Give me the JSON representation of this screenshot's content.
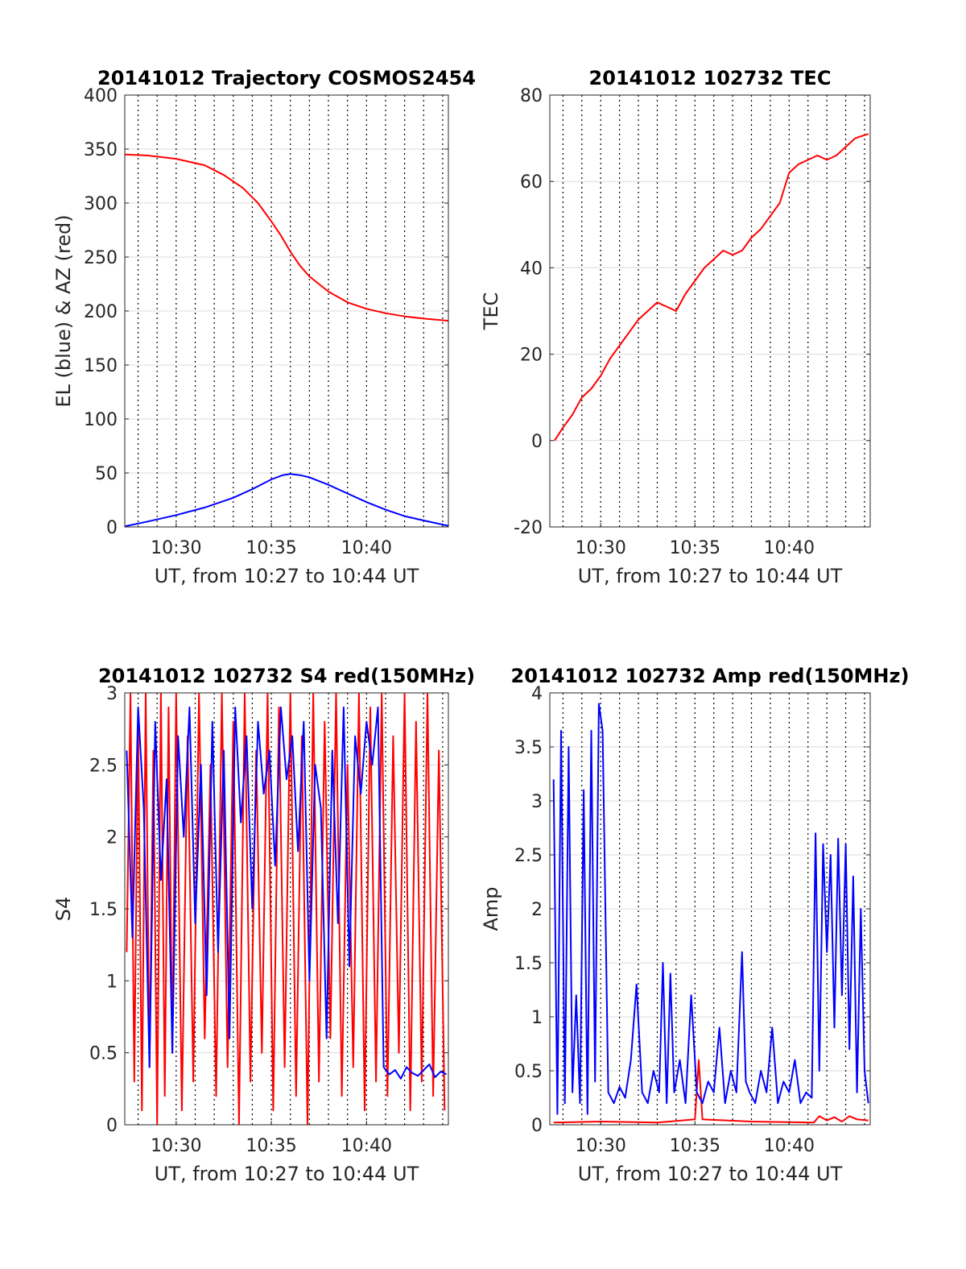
{
  "chart_data": [
    {
      "type": "line",
      "title": "20141012 Trajectory COSMOS2454",
      "xlabel": "UT, from 10:27 to 10:44 UT",
      "ylabel": "EL (blue) & AZ (red)",
      "xlim_minutes": [
        627.3,
        644.3
      ],
      "ylim": [
        0,
        400
      ],
      "grid": true,
      "xticks": [
        {
          "value": 630,
          "label": "10:30"
        },
        {
          "value": 635,
          "label": "10:35"
        },
        {
          "value": 640,
          "label": "10:40"
        }
      ],
      "yticks": [
        {
          "value": 0,
          "label": "0"
        },
        {
          "value": 50,
          "label": "50"
        },
        {
          "value": 100,
          "label": "100"
        },
        {
          "value": 150,
          "label": "150"
        },
        {
          "value": 200,
          "label": "200"
        },
        {
          "value": 250,
          "label": "250"
        },
        {
          "value": 300,
          "label": "300"
        },
        {
          "value": 350,
          "label": "350"
        },
        {
          "value": 400,
          "label": "400"
        }
      ],
      "series": [
        {
          "color": "#ff0000",
          "x": [
            627.3,
            628.5,
            630,
            631.5,
            632.5,
            633.5,
            634.3,
            635,
            635.5,
            636,
            636.5,
            637,
            638,
            639,
            640,
            641,
            642,
            643,
            644.3
          ],
          "y": [
            345,
            344,
            341,
            335,
            326,
            314,
            300,
            283,
            270,
            255,
            242,
            232,
            218,
            208,
            202,
            198,
            195,
            193,
            191
          ]
        },
        {
          "color": "#0000ff",
          "x": [
            627.3,
            628.5,
            630,
            631.5,
            633,
            634,
            635,
            635.6,
            636,
            636.5,
            637,
            638,
            639,
            640,
            641,
            642,
            643,
            644.3
          ],
          "y": [
            0.5,
            5,
            11,
            18,
            27,
            35,
            44,
            48,
            49,
            48,
            46,
            39,
            31,
            23,
            16,
            10,
            6,
            1
          ]
        }
      ]
    },
    {
      "type": "line",
      "title": "20141012 102732 TEC",
      "xlabel": "UT, from 10:27 to 10:44 UT",
      "ylabel": "TEC",
      "xlim_minutes": [
        627.3,
        644.3
      ],
      "ylim": [
        -20,
        80
      ],
      "grid": true,
      "xticks": [
        {
          "value": 630,
          "label": "10:30"
        },
        {
          "value": 635,
          "label": "10:35"
        },
        {
          "value": 640,
          "label": "10:40"
        }
      ],
      "yticks": [
        {
          "value": -20,
          "label": "-20"
        },
        {
          "value": 0,
          "label": "0"
        },
        {
          "value": 20,
          "label": "20"
        },
        {
          "value": 40,
          "label": "40"
        },
        {
          "value": 60,
          "label": "60"
        },
        {
          "value": 80,
          "label": "80"
        }
      ],
      "series": [
        {
          "color": "#ff0000",
          "x": [
            627.55,
            628,
            628.5,
            629,
            629.5,
            630,
            630.5,
            631,
            631.5,
            632,
            632.5,
            633,
            633.5,
            634,
            634.5,
            635,
            635.5,
            636,
            636.5,
            637,
            637.5,
            638,
            638.5,
            639,
            639.5,
            640,
            640.5,
            641,
            641.5,
            642,
            642.5,
            643,
            643.5,
            644.2
          ],
          "y": [
            0,
            3,
            6,
            10,
            12,
            15,
            19,
            22,
            25,
            28,
            30,
            32,
            31,
            30,
            34,
            37,
            40,
            42,
            44,
            43,
            44,
            47,
            49,
            52,
            55,
            62,
            64,
            65,
            66,
            65,
            66,
            68,
            70,
            71
          ]
        }
      ]
    },
    {
      "type": "line",
      "title": "20141012 102732 S4 red(150MHz)",
      "xlabel": "UT, from 10:27 to 10:44 UT",
      "ylabel": "S4",
      "xlim_minutes": [
        627.3,
        644.3
      ],
      "ylim": [
        0,
        3
      ],
      "grid": true,
      "xticks": [
        {
          "value": 630,
          "label": "10:30"
        },
        {
          "value": 635,
          "label": "10:35"
        },
        {
          "value": 640,
          "label": "10:40"
        }
      ],
      "yticks": [
        {
          "value": 0,
          "label": "0"
        },
        {
          "value": 0.5,
          "label": "0.5"
        },
        {
          "value": 1,
          "label": "1"
        },
        {
          "value": 1.5,
          "label": "1.5"
        },
        {
          "value": 2,
          "label": "2"
        },
        {
          "value": 2.5,
          "label": "2.5"
        },
        {
          "value": 3,
          "label": "3"
        }
      ],
      "series": [
        {
          "color": "#ff0000",
          "x": [
            627.4,
            627.6,
            627.8,
            628,
            628.2,
            628.4,
            628.6,
            628.8,
            629,
            629.2,
            629.4,
            629.6,
            629.8,
            630,
            630.3,
            630.6,
            630.9,
            631.2,
            631.5,
            631.8,
            632.1,
            632.4,
            632.7,
            633,
            633.3,
            633.6,
            633.9,
            634.2,
            634.5,
            634.8,
            635.1,
            635.4,
            635.7,
            636,
            636.3,
            636.6,
            636.9,
            637.2,
            637.5,
            637.8,
            638.1,
            638.4,
            638.7,
            639,
            639.3,
            639.6,
            639.9,
            640.2,
            640.5,
            640.8,
            641.1,
            641.4,
            641.7,
            642,
            642.3,
            642.6,
            642.9,
            643.2,
            643.5,
            643.8,
            644.1
          ],
          "y": [
            1.2,
            3,
            0.3,
            2.8,
            0.1,
            3,
            0.4,
            2.6,
            0,
            3,
            0.2,
            2.9,
            0.5,
            3,
            0.1,
            2.7,
            0.3,
            3,
            0.6,
            2.5,
            0.2,
            3,
            0.4,
            2.8,
            0,
            3,
            0.3,
            2.6,
            0.5,
            3,
            0.1,
            2.9,
            0.4,
            3,
            0.2,
            2.7,
            0,
            3,
            0.3,
            2.8,
            0.6,
            3,
            0.2,
            2.5,
            0.4,
            3,
            0.1,
            2.9,
            0.3,
            3,
            0.2,
            2.7,
            0.5,
            3,
            0.1,
            2.8,
            0.3,
            3,
            0.2,
            2.6,
            0.1
          ]
        },
        {
          "color": "#0000ff",
          "x": [
            627.4,
            627.7,
            628,
            628.3,
            628.6,
            628.9,
            629.2,
            629.5,
            629.8,
            630.1,
            630.4,
            630.7,
            631,
            631.3,
            631.6,
            631.9,
            632.2,
            632.5,
            632.8,
            633.1,
            633.4,
            633.7,
            634,
            634.3,
            634.6,
            634.9,
            635.2,
            635.5,
            635.8,
            636.1,
            636.4,
            636.7,
            637,
            637.3,
            637.6,
            637.9,
            638.2,
            638.5,
            638.8,
            639.1,
            639.4,
            639.7,
            640,
            640.3,
            640.6,
            640.9,
            641.2,
            641.5,
            641.8,
            642.1,
            642.4,
            642.7,
            643,
            643.3,
            643.6,
            643.9,
            644.2
          ],
          "y": [
            2.6,
            1.3,
            2.9,
            2.2,
            0.4,
            2.8,
            1.7,
            2.4,
            0.5,
            2.7,
            2.0,
            2.9,
            1.4,
            2.5,
            0.9,
            2.8,
            1.2,
            2.6,
            0.6,
            2.9,
            2.1,
            2.7,
            1.5,
            2.8,
            2.3,
            2.6,
            1.8,
            2.9,
            2.4,
            2.7,
            1.9,
            2.8,
            1.0,
            2.5,
            2.2,
            0.6,
            2.6,
            1.4,
            2.9,
            1.1,
            2.7,
            2.3,
            2.8,
            2.5,
            2.9,
            0.4,
            0.35,
            0.38,
            0.32,
            0.4,
            0.36,
            0.34,
            0.38,
            0.42,
            0.33,
            0.37,
            0.35
          ]
        }
      ]
    },
    {
      "type": "line",
      "title": "20141012 102732 Amp red(150MHz)",
      "xlabel": "UT, from 10:27 to 10:44 UT",
      "ylabel": "Amp",
      "xlim_minutes": [
        627.3,
        644.3
      ],
      "ylim": [
        0,
        4
      ],
      "grid": true,
      "xticks": [
        {
          "value": 630,
          "label": "10:30"
        },
        {
          "value": 635,
          "label": "10:35"
        },
        {
          "value": 640,
          "label": "10:40"
        }
      ],
      "yticks": [
        {
          "value": 0,
          "label": "0"
        },
        {
          "value": 0.5,
          "label": "0.5"
        },
        {
          "value": 1,
          "label": "1"
        },
        {
          "value": 1.5,
          "label": "1.5"
        },
        {
          "value": 2,
          "label": "2"
        },
        {
          "value": 2.5,
          "label": "2.5"
        },
        {
          "value": 3,
          "label": "3"
        },
        {
          "value": 3.5,
          "label": "3.5"
        },
        {
          "value": 4,
          "label": "4"
        }
      ],
      "series": [
        {
          "color": "#ff0000",
          "x": [
            627.5,
            630,
            633,
            635,
            635.2,
            635.4,
            638,
            641.3,
            641.6,
            642,
            642.4,
            642.8,
            643.2,
            643.6,
            644.2
          ],
          "y": [
            0.02,
            0.03,
            0.02,
            0.05,
            0.6,
            0.05,
            0.03,
            0.02,
            0.08,
            0.04,
            0.07,
            0.03,
            0.08,
            0.05,
            0.04
          ]
        },
        {
          "color": "#0000ff",
          "x": [
            627.5,
            627.7,
            627.9,
            628.1,
            628.3,
            628.5,
            628.7,
            628.9,
            629.1,
            629.3,
            629.5,
            629.7,
            629.9,
            630.1,
            630.4,
            630.7,
            631,
            631.3,
            631.6,
            631.9,
            632.2,
            632.5,
            632.8,
            633.1,
            633.3,
            633.5,
            633.7,
            633.9,
            634.2,
            634.5,
            634.8,
            635.1,
            635.4,
            635.7,
            636,
            636.3,
            636.6,
            636.9,
            637.2,
            637.5,
            637.7,
            637.9,
            638.2,
            638.5,
            638.8,
            639.1,
            639.4,
            639.7,
            640,
            640.3,
            640.6,
            640.9,
            641.2,
            641.4,
            641.6,
            641.8,
            642,
            642.2,
            642.4,
            642.6,
            642.8,
            643,
            643.2,
            643.4,
            643.6,
            643.8,
            644,
            644.2
          ],
          "y": [
            3.2,
            0.1,
            3.65,
            0.2,
            3.5,
            0.3,
            1.2,
            0.2,
            3.1,
            0.1,
            3.65,
            0.4,
            3.9,
            3.65,
            0.3,
            0.2,
            0.35,
            0.25,
            0.6,
            1.3,
            0.3,
            0.2,
            0.5,
            0.3,
            1.5,
            0.2,
            1.4,
            0.3,
            0.6,
            0.2,
            1.2,
            0.3,
            0.2,
            0.4,
            0.3,
            0.9,
            0.2,
            0.5,
            0.3,
            1.6,
            0.4,
            0.3,
            0.2,
            0.5,
            0.3,
            0.9,
            0.2,
            0.4,
            0.3,
            0.6,
            0.2,
            0.3,
            0.25,
            2.7,
            0.5,
            2.6,
            1.6,
            2.5,
            0.9,
            2.65,
            1.2,
            2.6,
            0.7,
            2.3,
            0.3,
            2.0,
            0.5,
            0.2
          ]
        }
      ]
    }
  ]
}
